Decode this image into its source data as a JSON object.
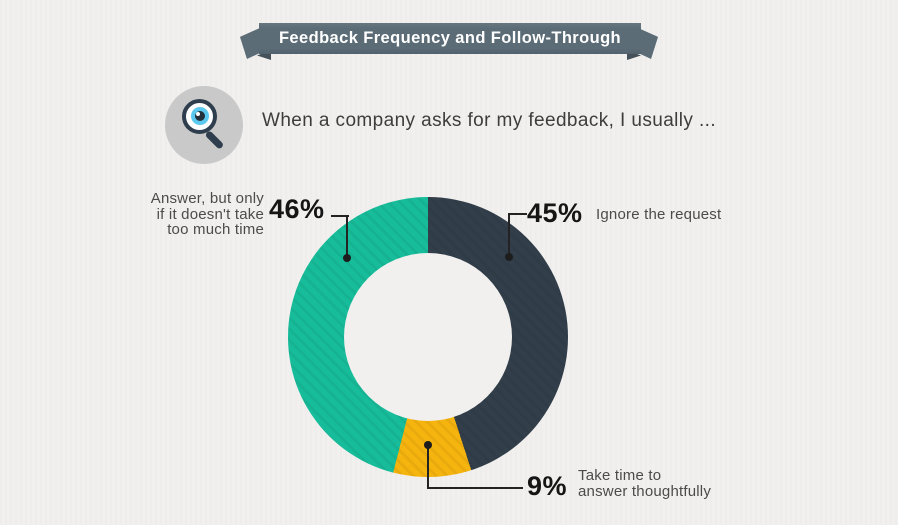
{
  "banner": {
    "title": "Feedback Frequency and Follow-Through"
  },
  "question": {
    "icon": "magnifier-eye-icon",
    "text": "When a company asks for my feedback, I usually ..."
  },
  "chart_data": {
    "type": "pie",
    "variant": "donut",
    "title": "When a company asks for my feedback, I usually ...",
    "start_angle_deg": 0,
    "direction": "clockwise",
    "segments": [
      {
        "label": "Ignore the request",
        "value_pct": 45,
        "color": "#323e4a"
      },
      {
        "label": "Take time to answer thoughtfully",
        "value_pct": 9,
        "color": "#f6b40e"
      },
      {
        "label": "Answer, but only if it doesn't take too much time",
        "value_pct": 46,
        "color": "#17bd9b"
      }
    ],
    "legend": "none",
    "texture": "diagonal-stripes"
  },
  "callouts": {
    "left": {
      "value": "46%",
      "lines": [
        "Answer, but only",
        "if it doesn't take",
        "too much time"
      ]
    },
    "right": {
      "value": "45%",
      "label": "Ignore the request"
    },
    "bottom": {
      "value": "9%",
      "lines": [
        "Take time to",
        "answer thoughtfully"
      ]
    }
  },
  "colors": {
    "background": "#f1f0ee",
    "ribbon": "#5b6c77",
    "ribbon_fold": "#44515b",
    "teal": "#17bd9b",
    "dark_slate": "#323e4a",
    "yellow": "#f6b40e",
    "percent_text": "#151515",
    "label_text": "#4b4b4b",
    "banner_text": "#ffffff"
  }
}
